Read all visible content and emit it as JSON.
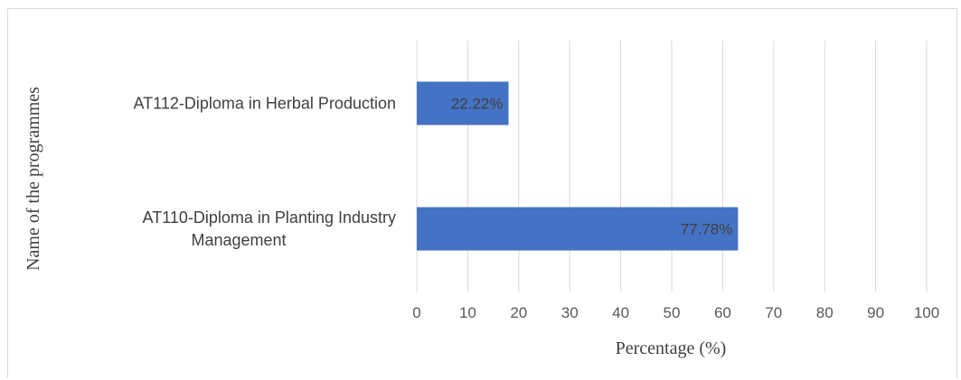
{
  "chart_data": {
    "type": "bar",
    "orientation": "horizontal",
    "categories": [
      "AT112-Diploma in Herbal Production",
      "AT110-Diploma in Planting Industry Management"
    ],
    "category_lines": [
      [
        "AT112-Diploma in Herbal Production"
      ],
      [
        "AT110-Diploma in Planting Industry",
        "Management"
      ]
    ],
    "values": [
      18,
      63
    ],
    "data_labels": [
      "22.22%",
      "77.78%"
    ],
    "xlabel": "Percentage (%)",
    "ylabel": "Name of the programmes",
    "xlim": [
      0,
      100
    ],
    "xticks": [
      "0",
      "10",
      "20",
      "30",
      "40",
      "50",
      "60",
      "70",
      "80",
      "90",
      "100"
    ],
    "grid": "vertical",
    "bar_color": "#4472c4",
    "gridline_color": "#d9d9d9"
  }
}
